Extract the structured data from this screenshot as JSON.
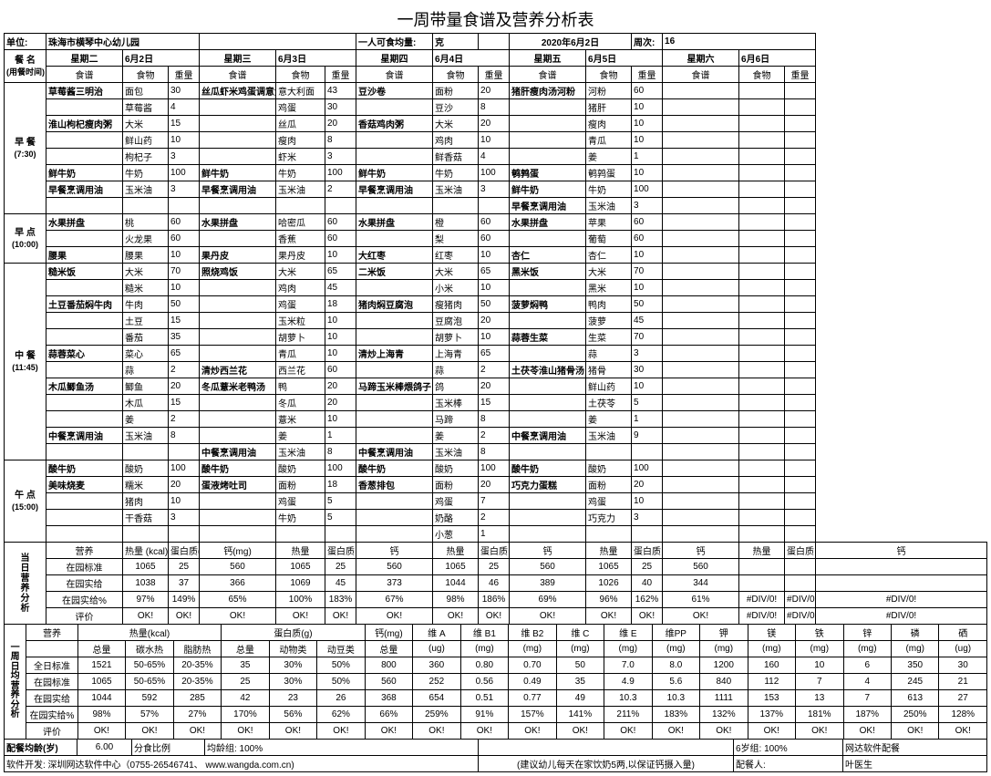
{
  "title": "一周带量食谱及营养分析表",
  "hdr": {
    "unit_l": "单位:",
    "unit_v": "珠海市横琴中心幼儿园",
    "percap": "一人可食均量:",
    "percap_u": "克",
    "date": "2020年6月2日",
    "week_l": "周次:",
    "week_v": "16",
    "meal_l": "餐   名",
    "meal_s": "(用餐时间)",
    "recipe": "食谱",
    "food": "食物",
    "amt": "重量"
  },
  "days": [
    "星期二",
    "6月2日",
    "星期三",
    "6月3日",
    "星期四",
    "6月4日",
    "星期五",
    "6月5日",
    "星期六",
    "6月6日"
  ],
  "meals": {
    "bf": {
      "n": "早 餐",
      "t": "(7:30)"
    },
    "ms": {
      "n": "早 点",
      "t": "(10:00)"
    },
    "ln": {
      "n": "中 餐",
      "t": "(11:45)"
    },
    "as": {
      "n": "午 点",
      "t": "(15:00)"
    }
  },
  "bf": [
    [
      "草莓酱三明治",
      "面包",
      "30",
      "丝瓜虾米鸡蛋调意大利面",
      "意大利面",
      "43",
      "豆沙卷",
      "面粉",
      "20",
      "猪肝瘦肉汤河粉",
      "河粉",
      "60",
      "",
      "",
      ""
    ],
    [
      "",
      "草莓酱",
      "4",
      "",
      "鸡蛋",
      "30",
      "",
      "豆沙",
      "8",
      "",
      "猪肝",
      "10",
      "",
      "",
      ""
    ],
    [
      "淮山枸杞瘦肉粥",
      "大米",
      "15",
      "",
      "丝瓜",
      "20",
      "香菇鸡肉粥",
      "大米",
      "20",
      "",
      "瘦肉",
      "10",
      "",
      "",
      ""
    ],
    [
      "",
      "鲜山药",
      "10",
      "",
      "瘦肉",
      "8",
      "",
      "鸡肉",
      "10",
      "",
      "青瓜",
      "10",
      "",
      "",
      ""
    ],
    [
      "",
      "枸杞子",
      "3",
      "",
      "虾米",
      "3",
      "",
      "鲜香菇",
      "4",
      "",
      "姜",
      "1",
      "",
      "",
      ""
    ],
    [
      "鲜牛奶",
      "牛奶",
      "100",
      "鲜牛奶",
      "牛奶",
      "100",
      "鲜牛奶",
      "牛奶",
      "100",
      "鹌鹑蛋",
      "鹌鹑蛋",
      "10",
      "",
      "",
      ""
    ],
    [
      "早餐烹调用油",
      "玉米油",
      "3",
      "早餐烹调用油",
      "玉米油",
      "2",
      "早餐烹调用油",
      "玉米油",
      "3",
      "鲜牛奶",
      "牛奶",
      "100",
      "",
      "",
      ""
    ],
    [
      "",
      "",
      "",
      "",
      "",
      "",
      "",
      "",
      "",
      "早餐烹调用油",
      "玉米油",
      "3",
      "",
      "",
      ""
    ]
  ],
  "ms": [
    [
      "水果拼盘",
      "桃",
      "60",
      "水果拼盘",
      "哈密瓜",
      "60",
      "水果拼盘",
      "橙",
      "60",
      "水果拼盘",
      "苹果",
      "60",
      "",
      "",
      ""
    ],
    [
      "",
      "火龙果",
      "60",
      "",
      "香蕉",
      "60",
      "",
      "梨",
      "60",
      "",
      "葡萄",
      "60",
      "",
      "",
      ""
    ],
    [
      "腰果",
      "腰果",
      "10",
      "果丹皮",
      "果丹皮",
      "10",
      "大红枣",
      "红枣",
      "10",
      "杏仁",
      "杏仁",
      "10",
      "",
      "",
      ""
    ]
  ],
  "ln": [
    [
      "糙米饭",
      "大米",
      "70",
      "照烧鸡饭",
      "大米",
      "65",
      "二米饭",
      "大米",
      "65",
      "黑米饭",
      "大米",
      "70",
      "",
      "",
      ""
    ],
    [
      "",
      "糙米",
      "10",
      "",
      "鸡肉",
      "45",
      "",
      "小米",
      "10",
      "",
      "黑米",
      "10",
      "",
      "",
      ""
    ],
    [
      "土豆番茄焖牛肉",
      "牛肉",
      "50",
      "",
      "鸡蛋",
      "18",
      "猪肉焖豆腐泡",
      "瘦猪肉",
      "50",
      "菠萝焖鸭",
      "鸭肉",
      "50",
      "",
      "",
      ""
    ],
    [
      "",
      "土豆",
      "15",
      "",
      "玉米粒",
      "10",
      "",
      "豆腐泡",
      "20",
      "",
      "菠萝",
      "45",
      "",
      "",
      ""
    ],
    [
      "",
      "番茄",
      "35",
      "",
      "胡萝卜",
      "10",
      "",
      "胡萝卜",
      "10",
      "蒜蓉生菜",
      "生菜",
      "70",
      "",
      "",
      ""
    ],
    [
      "蒜蓉菜心",
      "菜心",
      "65",
      "",
      "青瓜",
      "10",
      "清炒上海青",
      "上海青",
      "65",
      "",
      "蒜",
      "3",
      "",
      "",
      ""
    ],
    [
      "",
      "蒜",
      "2",
      "清炒西兰花",
      "西兰花",
      "60",
      "",
      "蒜",
      "2",
      "土茯苓淮山猪骨汤",
      "猪骨",
      "30",
      "",
      "",
      ""
    ],
    [
      "木瓜鲫鱼汤",
      "鲫鱼",
      "20",
      "冬瓜薏米老鸭汤",
      "鸭",
      "20",
      "马蹄玉米棒煨鸽子",
      "鸽",
      "20",
      "",
      "鲜山药",
      "10",
      "",
      "",
      ""
    ],
    [
      "",
      "木瓜",
      "15",
      "",
      "冬瓜",
      "20",
      "",
      "玉米棒",
      "15",
      "",
      "土茯苓",
      "5",
      "",
      "",
      ""
    ],
    [
      "",
      "姜",
      "2",
      "",
      "薏米",
      "10",
      "",
      "马蹄",
      "8",
      "",
      "姜",
      "1",
      "",
      "",
      ""
    ],
    [
      "中餐烹调用油",
      "玉米油",
      "8",
      "",
      "姜",
      "1",
      "",
      "姜",
      "2",
      "中餐烹调用油",
      "玉米油",
      "9",
      "",
      "",
      ""
    ],
    [
      "",
      "",
      "",
      "中餐烹调用油",
      "玉米油",
      "8",
      "中餐烹调用油",
      "玉米油",
      "8",
      "",
      "",
      "",
      "",
      "",
      ""
    ]
  ],
  "as": [
    [
      "酸牛奶",
      "酸奶",
      "100",
      "酸牛奶",
      "酸奶",
      "100",
      "酸牛奶",
      "酸奶",
      "100",
      "酸牛奶",
      "酸奶",
      "100",
      "",
      "",
      ""
    ],
    [
      "美味烧麦",
      "糯米",
      "20",
      "蛋液烤吐司",
      "面粉",
      "18",
      "香葱排包",
      "面粉",
      "20",
      "巧克力蛋糕",
      "面粉",
      "20",
      "",
      "",
      ""
    ],
    [
      "",
      "猪肉",
      "10",
      "",
      "鸡蛋",
      "5",
      "",
      "鸡蛋",
      "7",
      "",
      "鸡蛋",
      "10",
      "",
      "",
      ""
    ],
    [
      "",
      "干香菇",
      "3",
      "",
      "牛奶",
      "5",
      "",
      "奶酪",
      "2",
      "",
      "巧克力",
      "3",
      "",
      "",
      ""
    ],
    [
      "",
      "",
      "",
      "",
      "",
      "",
      "",
      "小葱",
      "1",
      "",
      "",
      "",
      "",
      "",
      ""
    ]
  ],
  "dn": {
    "side_l": "当日营养分析",
    "h": [
      "营养",
      "热量 (kcal)",
      "蛋白质(g)",
      "钙(mg)",
      "热量",
      "蛋白质",
      "钙",
      "热量",
      "蛋白质",
      "钙",
      "热量",
      "蛋白质",
      "钙",
      "热量",
      "蛋白质",
      "钙"
    ],
    "rows": [
      [
        "在园标准",
        "1065",
        "25",
        "560",
        "1065",
        "25",
        "560",
        "1065",
        "25",
        "560",
        "1065",
        "25",
        "560",
        "",
        "",
        ""
      ],
      [
        "在园实给",
        "1038",
        "37",
        "366",
        "1069",
        "45",
        "373",
        "1044",
        "46",
        "389",
        "1026",
        "40",
        "344",
        "",
        "",
        ""
      ],
      [
        "在园实给%",
        "97%",
        "149%",
        "65%",
        "100%",
        "183%",
        "67%",
        "98%",
        "186%",
        "69%",
        "96%",
        "162%",
        "61%",
        "#DIV/0!",
        "#DIV/0!",
        "#DIV/0!"
      ],
      [
        "评价",
        "OK!",
        "OK!",
        "OK!",
        "OK!",
        "OK!",
        "OK!",
        "OK!",
        "OK!",
        "OK!",
        "OK!",
        "OK!",
        "OK!",
        "#DIV/0!",
        "#DIV/0!",
        "#DIV/0!"
      ]
    ]
  },
  "wn": {
    "side_l": "一周日均营养分析",
    "h1": [
      "营养",
      "热量(kcal)",
      "",
      "蛋白质(g)",
      "",
      "",
      "钙(mg)",
      "维 A",
      "维 B1",
      "维 B2",
      "维 C",
      "维 E",
      "维PP",
      "钾",
      "镁",
      "铁",
      "锌",
      "磷",
      "硒"
    ],
    "h2": [
      "",
      "总量",
      "碳水热",
      "脂肪热",
      "总量",
      "动物类",
      "动豆类",
      "总量",
      "(ug)",
      "(mg)",
      "(mg)",
      "(mg)",
      "(mg)",
      "(mg)",
      "(mg)",
      "(mg)",
      "(mg)",
      "(mg)",
      "(mg)",
      "(ug)"
    ],
    "rows": [
      [
        "全日标准",
        "1521",
        "50-65%",
        "20-35%",
        "35",
        "30%",
        "50%",
        "800",
        "360",
        "0.80",
        "0.70",
        "50",
        "7.0",
        "8.0",
        "1200",
        "160",
        "10",
        "6",
        "350",
        "30"
      ],
      [
        "在园标准",
        "1065",
        "50-65%",
        "20-35%",
        "25",
        "30%",
        "50%",
        "560",
        "252",
        "0.56",
        "0.49",
        "35",
        "4.9",
        "5.6",
        "840",
        "112",
        "7",
        "4",
        "245",
        "21"
      ],
      [
        "在园实给",
        "1044",
        "592",
        "285",
        "42",
        "23",
        "26",
        "368",
        "654",
        "0.51",
        "0.77",
        "49",
        "10.3",
        "10.3",
        "1111",
        "153",
        "13",
        "7",
        "613",
        "27"
      ],
      [
        "在园实给%",
        "98%",
        "57%",
        "27%",
        "170%",
        "56%",
        "62%",
        "66%",
        "259%",
        "91%",
        "157%",
        "141%",
        "211%",
        "183%",
        "132%",
        "137%",
        "181%",
        "187%",
        "250%",
        "128%"
      ],
      [
        "评价",
        "OK!",
        "OK!",
        "OK!",
        "OK!",
        "OK!",
        "OK!",
        "OK!",
        "OK!",
        "OK!",
        "OK!",
        "OK!",
        "OK!",
        "OK!",
        "OK!",
        "OK!",
        "OK!",
        "OK!",
        "OK!",
        "OK!"
      ]
    ]
  },
  "ft": {
    "age_l": "配餐均龄(岁)",
    "age_v": "6.00",
    "ratio_l": "分食比例",
    "ratio_v": "均龄组: 100%",
    "six_l": "6岁组: 100%",
    "soft": "网达软件配餐",
    "dev": "软件开发: 深圳网达软件中心（0755-26546741、 www.wangda.com.cn)",
    "tip": "(建议幼儿每天在家饮奶5两,以保证钙摄入量)",
    "person_l": "配餐人:",
    "person_v": "叶医生"
  }
}
